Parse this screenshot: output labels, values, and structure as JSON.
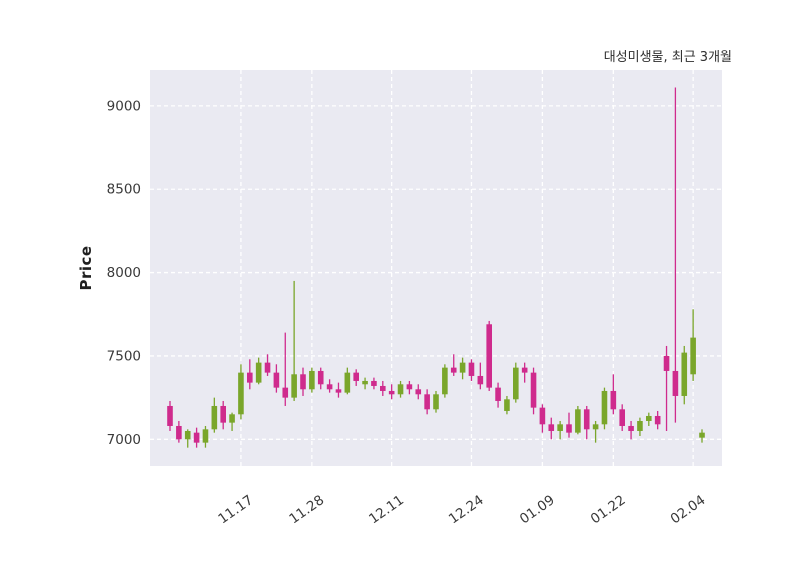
{
  "chart_data": {
    "type": "candlestick",
    "title": "대성미생물, 최근 3개월",
    "ylabel": "Price",
    "xlabel": "",
    "plot_bg": "#eaeaf2",
    "grid": "both-dashed-white",
    "legend": "none",
    "up_color": "#7aa62b",
    "down_color": "#cf2b8d",
    "tick_color": "#3a3a3a",
    "ylim": [
      6840,
      9215
    ],
    "yticks": [
      7000,
      7500,
      8000,
      8500,
      9000
    ],
    "xticks": [
      {
        "index": 8,
        "label": "11.17"
      },
      {
        "index": 16,
        "label": "11.28"
      },
      {
        "index": 25,
        "label": "12.11"
      },
      {
        "index": 34,
        "label": "12.24"
      },
      {
        "index": 42,
        "label": "01.09"
      },
      {
        "index": 50,
        "label": "01.22"
      },
      {
        "index": 59,
        "label": "02.04"
      }
    ],
    "candles_format": [
      "open",
      "high",
      "low",
      "close"
    ],
    "candles": [
      [
        7200,
        7230,
        7050,
        7080
      ],
      [
        7080,
        7110,
        6980,
        7000
      ],
      [
        7000,
        7060,
        6950,
        7050
      ],
      [
        7040,
        7070,
        6950,
        6980
      ],
      [
        6980,
        7080,
        6950,
        7060
      ],
      [
        7060,
        7250,
        7040,
        7200
      ],
      [
        7200,
        7230,
        7060,
        7100
      ],
      [
        7100,
        7160,
        7050,
        7150
      ],
      [
        7150,
        7450,
        7120,
        7400
      ],
      [
        7400,
        7480,
        7300,
        7340
      ],
      [
        7340,
        7490,
        7330,
        7460
      ],
      [
        7460,
        7510,
        7380,
        7400
      ],
      [
        7400,
        7450,
        7280,
        7310
      ],
      [
        7310,
        7640,
        7200,
        7250
      ],
      [
        7250,
        7950,
        7230,
        7390
      ],
      [
        7390,
        7430,
        7260,
        7300
      ],
      [
        7300,
        7430,
        7280,
        7410
      ],
      [
        7410,
        7430,
        7300,
        7330
      ],
      [
        7330,
        7360,
        7280,
        7300
      ],
      [
        7300,
        7340,
        7250,
        7280
      ],
      [
        7280,
        7430,
        7270,
        7400
      ],
      [
        7400,
        7420,
        7320,
        7350
      ],
      [
        7330,
        7370,
        7300,
        7350
      ],
      [
        7350,
        7370,
        7300,
        7320
      ],
      [
        7320,
        7350,
        7260,
        7290
      ],
      [
        7290,
        7330,
        7240,
        7270
      ],
      [
        7270,
        7350,
        7250,
        7330
      ],
      [
        7330,
        7350,
        7270,
        7300
      ],
      [
        7300,
        7330,
        7240,
        7270
      ],
      [
        7270,
        7300,
        7150,
        7180
      ],
      [
        7180,
        7290,
        7160,
        7270
      ],
      [
        7270,
        7450,
        7250,
        7430
      ],
      [
        7430,
        7510,
        7380,
        7400
      ],
      [
        7400,
        7490,
        7360,
        7460
      ],
      [
        7460,
        7480,
        7350,
        7380
      ],
      [
        7380,
        7460,
        7300,
        7330
      ],
      [
        7690,
        7710,
        7290,
        7310
      ],
      [
        7310,
        7340,
        7190,
        7230
      ],
      [
        7170,
        7260,
        7150,
        7240
      ],
      [
        7240,
        7460,
        7220,
        7430
      ],
      [
        7430,
        7460,
        7340,
        7400
      ],
      [
        7400,
        7430,
        7150,
        7190
      ],
      [
        7190,
        7210,
        7040,
        7090
      ],
      [
        7090,
        7130,
        7000,
        7050
      ],
      [
        7050,
        7110,
        7000,
        7090
      ],
      [
        7090,
        7160,
        7010,
        7040
      ],
      [
        7040,
        7200,
        7030,
        7180
      ],
      [
        7180,
        7200,
        7000,
        7060
      ],
      [
        7060,
        7110,
        6980,
        7090
      ],
      [
        7090,
        7310,
        7060,
        7290
      ],
      [
        7290,
        7390,
        7150,
        7180
      ],
      [
        7180,
        7210,
        7050,
        7080
      ],
      [
        7080,
        7110,
        7000,
        7050
      ],
      [
        7050,
        7130,
        7020,
        7110
      ],
      [
        7110,
        7160,
        7080,
        7140
      ],
      [
        7140,
        7170,
        7060,
        7090
      ],
      [
        7500,
        7560,
        7050,
        7410
      ],
      [
        7410,
        9110,
        7100,
        7260
      ],
      [
        7260,
        7560,
        7210,
        7520
      ],
      [
        7390,
        7780,
        7350,
        7610
      ],
      [
        7010,
        7060,
        6980,
        7040
      ]
    ]
  }
}
